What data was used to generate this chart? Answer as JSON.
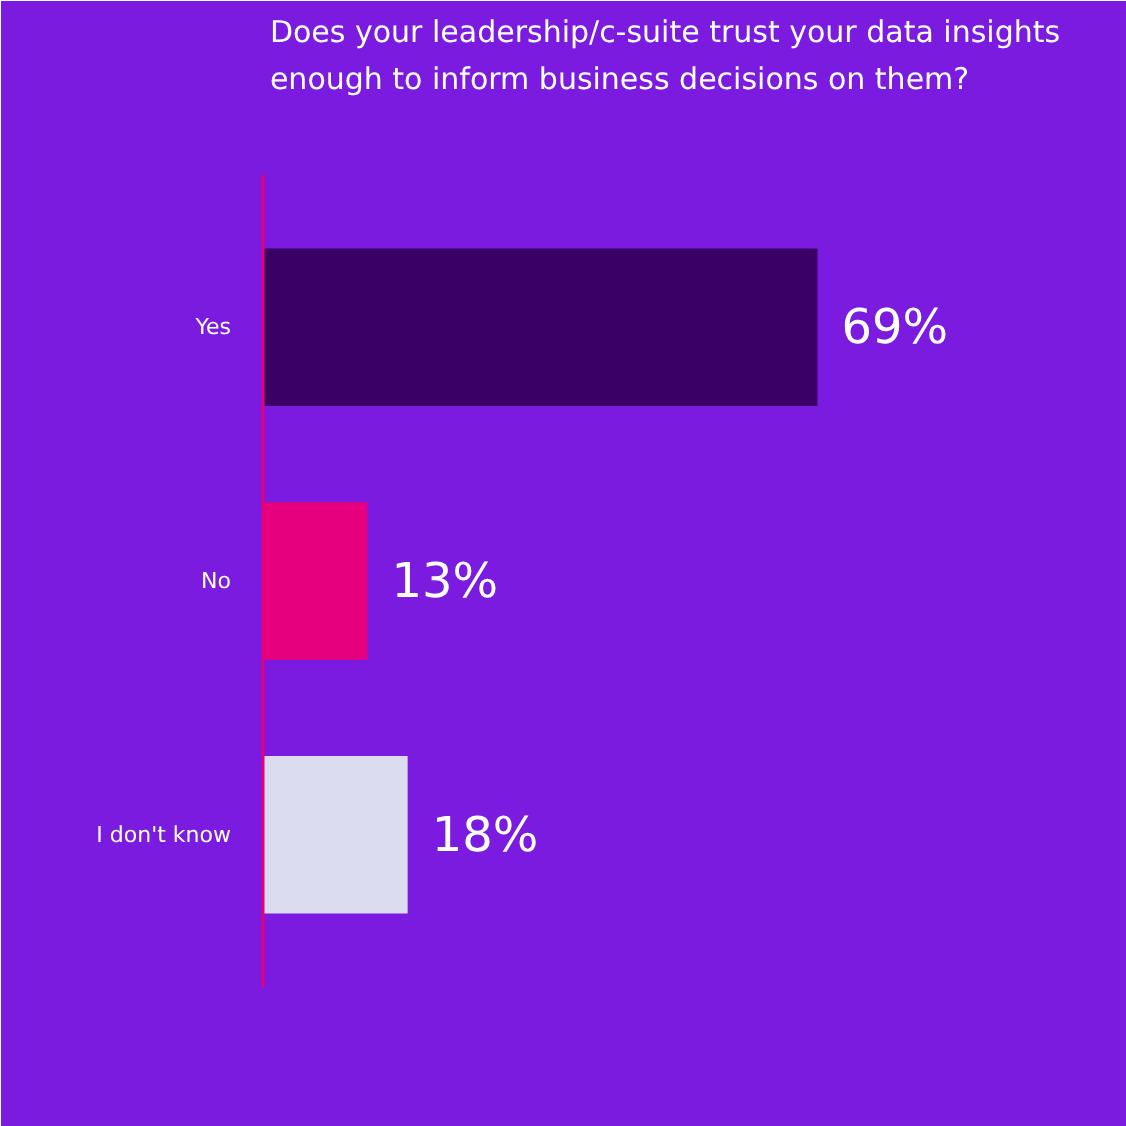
{
  "chart_data": {
    "type": "bar",
    "orientation": "horizontal",
    "title": "Does your leadership/c-suite trust your data insights enough to inform business decisions on them?",
    "categories": [
      "Yes",
      "No",
      "I don't know"
    ],
    "values": [
      69,
      13,
      18
    ],
    "colors": [
      "#3b0066",
      "#e6007e",
      "#dcdcf0"
    ],
    "value_labels": [
      "69%",
      "13%",
      "18%"
    ],
    "tick_labels": "y",
    "grid": false
  }
}
